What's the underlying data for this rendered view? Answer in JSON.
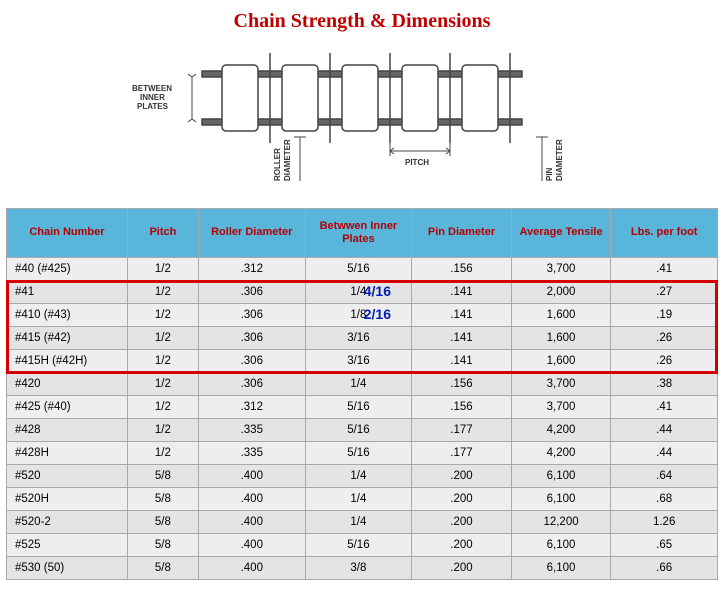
{
  "title": {
    "text": "Chain Strength & Dimensions",
    "color": "#c00000"
  },
  "diagram": {
    "labels": {
      "between_inner_plates": "BETWEEN INNER PLATES",
      "roller_diameter": "ROLLER DIAMETER",
      "pitch": "PITCH",
      "pin_diameter": "PIN DIAMETER"
    }
  },
  "table": {
    "header_bg": "#5ab5da",
    "header_fg": "#b60000",
    "row_bg": "#eeeeee",
    "row_alt_bg": "#e4e4e4",
    "border_color": "#a9a9a9",
    "columns": [
      "Chain Number",
      "Pitch",
      "Roller Diameter",
      "Betwwen Inner Plates",
      "Pin Diameter",
      "Average Tensile",
      "Lbs. per foot"
    ],
    "rows": [
      [
        "#40 (#425)",
        "1/2",
        ".312",
        "5/16",
        ".156",
        "3,700",
        ".41"
      ],
      [
        "#41",
        "1/2",
        ".306",
        "1/4",
        ".141",
        "2,000",
        ".27"
      ],
      [
        "#410 (#43)",
        "1/2",
        ".306",
        "1/8",
        ".141",
        "1,600",
        ".19"
      ],
      [
        "#415 (#42)",
        "1/2",
        ".306",
        "3/16",
        ".141",
        "1,600",
        ".26"
      ],
      [
        "#415H (#42H)",
        "1/2",
        ".306",
        "3/16",
        ".141",
        "1,600",
        ".26"
      ],
      [
        "#420",
        "1/2",
        ".306",
        "1/4",
        ".156",
        "3,700",
        ".38"
      ],
      [
        "#425 (#40)",
        "1/2",
        ".312",
        "5/16",
        ".156",
        "3,700",
        ".41"
      ],
      [
        "#428",
        "1/2",
        ".335",
        "5/16",
        ".177",
        "4,200",
        ".44"
      ],
      [
        "#428H",
        "1/2",
        ".335",
        "5/16",
        ".177",
        "4,200",
        ".44"
      ],
      [
        "#520",
        "5/8",
        ".400",
        "1/4",
        ".200",
        "6,100",
        ".64"
      ],
      [
        "#520H",
        "5/8",
        ".400",
        "1/4",
        ".200",
        "6,100",
        ".68"
      ],
      [
        "#520-2",
        "5/8",
        ".400",
        "1/4",
        ".200",
        "12,200",
        "1.26"
      ],
      [
        "#525",
        "5/8",
        ".400",
        "5/16",
        ".200",
        "6,100",
        ".65"
      ],
      [
        "#530 (50)",
        "5/8",
        ".400",
        "3/8",
        ".200",
        "6,100",
        ".66"
      ]
    ]
  },
  "highlight": {
    "color": "#d40000",
    "rows_start": 1,
    "rows_end": 4,
    "annotations": [
      {
        "text": "4/16",
        "row": 1
      },
      {
        "text": "2/16",
        "row": 2
      }
    ],
    "annotation_color": "#001eb4"
  }
}
